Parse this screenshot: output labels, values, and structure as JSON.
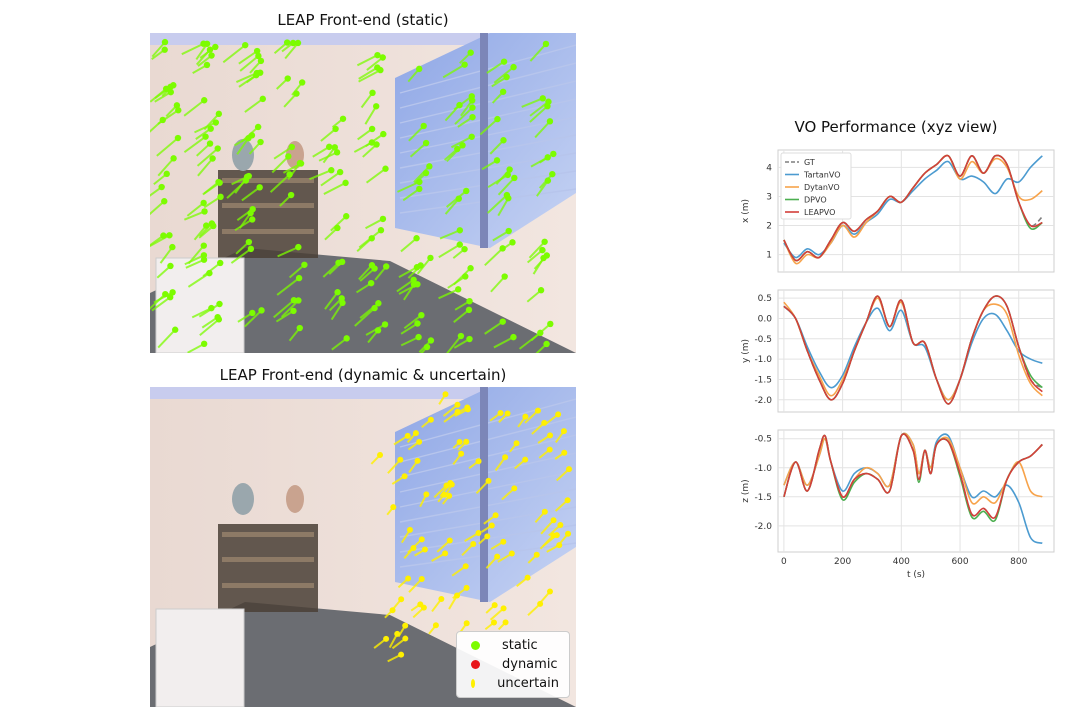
{
  "panels": {
    "static_title": "LEAP Front-end (static)",
    "dynamic_title": "LEAP Front-end (dynamic & uncertain)",
    "legend": [
      {
        "label": "static",
        "color": "#7CFC00"
      },
      {
        "label": "dynamic",
        "color": "#E8161B"
      },
      {
        "label": "uncertain",
        "color": "#FFF000"
      }
    ]
  },
  "chart_data": {
    "type": "line",
    "title": "VO Performance (xyz view)",
    "xlabel": "t (s)",
    "xlim": [
      -20,
      920
    ],
    "xticks": [
      0,
      200,
      400,
      600,
      800
    ],
    "grid": true,
    "legend_placement": "top-left of first subplot",
    "colors": {
      "GT": "#7f7f7f",
      "TartanVO": "#4C9BD0",
      "DytanVO": "#F7A34B",
      "DPVO": "#4CAF50",
      "LEAPVO": "#D43F3A"
    },
    "subplots": [
      {
        "ylabel": "x (m)",
        "ylim": [
          0.4,
          4.6
        ],
        "yticks": [
          1,
          2,
          3,
          4
        ],
        "x": [
          0,
          40,
          80,
          120,
          160,
          200,
          240,
          280,
          320,
          360,
          400,
          440,
          480,
          520,
          560,
          600,
          640,
          680,
          720,
          760,
          800,
          840,
          880
        ],
        "series": [
          {
            "name": "GT",
            "style": "dashed",
            "values": [
              1.5,
              0.8,
              1.1,
              0.9,
              1.5,
              2.1,
              1.8,
              2.2,
              2.5,
              3.0,
              2.8,
              3.3,
              3.8,
              4.1,
              4.4,
              3.7,
              4.4,
              3.8,
              4.4,
              4.1,
              2.8,
              2.0,
              2.3
            ]
          },
          {
            "name": "TartanVO",
            "values": [
              1.4,
              0.9,
              1.2,
              1.0,
              1.4,
              2.0,
              1.7,
              2.1,
              2.4,
              2.9,
              2.8,
              3.2,
              3.6,
              3.9,
              4.2,
              3.6,
              3.7,
              3.5,
              3.1,
              3.6,
              3.5,
              4.0,
              4.4
            ]
          },
          {
            "name": "DytanVO",
            "values": [
              1.5,
              0.7,
              1.0,
              0.9,
              1.4,
              2.0,
              1.6,
              2.1,
              2.5,
              3.0,
              2.8,
              3.3,
              3.8,
              4.1,
              4.4,
              3.6,
              4.2,
              3.8,
              4.3,
              4.0,
              3.0,
              2.9,
              3.2
            ]
          },
          {
            "name": "DPVO",
            "values": [
              1.5,
              0.8,
              1.1,
              0.9,
              1.5,
              2.1,
              1.8,
              2.2,
              2.5,
              3.0,
              2.8,
              3.3,
              3.8,
              4.1,
              4.4,
              3.7,
              4.4,
              3.8,
              4.4,
              4.1,
              2.8,
              1.9,
              2.1
            ]
          },
          {
            "name": "LEAPVO",
            "values": [
              1.5,
              0.8,
              1.1,
              0.9,
              1.5,
              2.1,
              1.8,
              2.2,
              2.5,
              3.0,
              2.8,
              3.3,
              3.8,
              4.1,
              4.4,
              3.7,
              4.4,
              3.8,
              4.4,
              4.1,
              2.8,
              2.0,
              2.1
            ]
          }
        ]
      },
      {
        "ylabel": "y (m)",
        "ylim": [
          -2.3,
          0.7
        ],
        "yticks": [
          -2.0,
          -1.5,
          -1.0,
          -0.5,
          0.0,
          0.5
        ],
        "x": [
          0,
          40,
          80,
          120,
          160,
          200,
          240,
          280,
          320,
          360,
          400,
          440,
          480,
          520,
          560,
          600,
          640,
          680,
          720,
          760,
          800,
          840,
          880
        ],
        "series": [
          {
            "name": "GT",
            "style": "dashed",
            "values": [
              0.3,
              0.0,
              -0.8,
              -1.5,
              -2.0,
              -1.6,
              -0.8,
              -0.1,
              0.55,
              -0.2,
              0.45,
              -0.6,
              -0.6,
              -1.5,
              -2.1,
              -1.5,
              -0.5,
              0.2,
              0.55,
              0.3,
              -0.7,
              -1.5,
              -1.7
            ]
          },
          {
            "name": "TartanVO",
            "values": [
              0.3,
              0.0,
              -0.7,
              -1.3,
              -1.7,
              -1.4,
              -0.7,
              -0.1,
              0.25,
              -0.3,
              0.2,
              -0.6,
              -0.7,
              -1.5,
              -2.0,
              -1.5,
              -0.6,
              0.0,
              0.1,
              -0.3,
              -0.8,
              -1.0,
              -1.1
            ]
          },
          {
            "name": "DytanVO",
            "values": [
              0.4,
              0.0,
              -0.8,
              -1.4,
              -1.9,
              -1.5,
              -0.8,
              -0.1,
              0.5,
              -0.2,
              0.4,
              -0.6,
              -0.6,
              -1.5,
              -2.0,
              -1.5,
              -0.5,
              0.2,
              0.35,
              0.1,
              -0.9,
              -1.6,
              -1.9
            ]
          },
          {
            "name": "DPVO",
            "values": [
              0.3,
              0.0,
              -0.8,
              -1.5,
              -2.0,
              -1.6,
              -0.8,
              -0.1,
              0.55,
              -0.2,
              0.45,
              -0.6,
              -0.6,
              -1.5,
              -2.1,
              -1.5,
              -0.5,
              0.2,
              0.55,
              0.3,
              -0.7,
              -1.4,
              -1.7
            ]
          },
          {
            "name": "LEAPVO",
            "values": [
              0.3,
              0.0,
              -0.8,
              -1.5,
              -2.0,
              -1.6,
              -0.8,
              -0.1,
              0.55,
              -0.2,
              0.45,
              -0.6,
              -0.6,
              -1.5,
              -2.1,
              -1.5,
              -0.5,
              0.2,
              0.55,
              0.3,
              -0.7,
              -1.5,
              -1.8
            ]
          }
        ]
      },
      {
        "ylabel": "z (m)",
        "ylim": [
          -2.45,
          -0.35
        ],
        "yticks": [
          -2.0,
          -1.5,
          -1.0,
          -0.5
        ],
        "x": [
          0,
          40,
          80,
          120,
          140,
          160,
          200,
          240,
          280,
          320,
          360,
          400,
          440,
          460,
          480,
          500,
          520,
          560,
          600,
          640,
          680,
          720,
          760,
          800,
          840,
          880
        ],
        "series": [
          {
            "name": "GT",
            "style": "dashed",
            "values": [
              -1.5,
              -0.9,
              -1.4,
              -0.7,
              -0.45,
              -0.9,
              -1.5,
              -1.2,
              -1.1,
              -1.2,
              -1.4,
              -0.45,
              -0.7,
              -1.2,
              -0.7,
              -1.1,
              -0.6,
              -0.55,
              -1.1,
              -1.8,
              -1.7,
              -1.85,
              -1.2,
              -0.9,
              -0.8,
              -0.6
            ]
          },
          {
            "name": "TartanVO",
            "values": [
              -1.3,
              -0.9,
              -1.3,
              -0.8,
              -0.5,
              -0.9,
              -1.4,
              -1.1,
              -1.0,
              -1.1,
              -1.3,
              -0.45,
              -0.6,
              -1.1,
              -0.7,
              -1.0,
              -0.55,
              -0.45,
              -1.0,
              -1.5,
              -1.4,
              -1.5,
              -1.3,
              -1.6,
              -2.2,
              -2.3
            ]
          },
          {
            "name": "DytanVO",
            "values": [
              -1.3,
              -0.9,
              -1.3,
              -0.8,
              -0.5,
              -0.9,
              -1.5,
              -1.2,
              -1.0,
              -1.1,
              -1.3,
              -0.45,
              -0.6,
              -1.1,
              -0.7,
              -1.0,
              -0.6,
              -0.5,
              -1.0,
              -1.6,
              -1.5,
              -1.6,
              -1.2,
              -0.9,
              -1.4,
              -1.5
            ]
          },
          {
            "name": "DPVO",
            "values": [
              -1.5,
              -0.9,
              -1.4,
              -0.7,
              -0.45,
              -0.9,
              -1.55,
              -1.25,
              -1.1,
              -1.2,
              -1.4,
              -0.45,
              -0.7,
              -1.25,
              -0.7,
              -1.1,
              -0.6,
              -0.55,
              -1.15,
              -1.85,
              -1.75,
              -1.9,
              -1.2,
              -0.9,
              -0.8,
              -0.6
            ]
          },
          {
            "name": "LEAPVO",
            "values": [
              -1.5,
              -0.9,
              -1.4,
              -0.7,
              -0.45,
              -0.9,
              -1.5,
              -1.2,
              -1.1,
              -1.2,
              -1.4,
              -0.45,
              -0.7,
              -1.2,
              -0.7,
              -1.1,
              -0.6,
              -0.55,
              -1.1,
              -1.8,
              -1.7,
              -1.85,
              -1.2,
              -0.9,
              -0.8,
              -0.6
            ]
          }
        ]
      }
    ]
  }
}
